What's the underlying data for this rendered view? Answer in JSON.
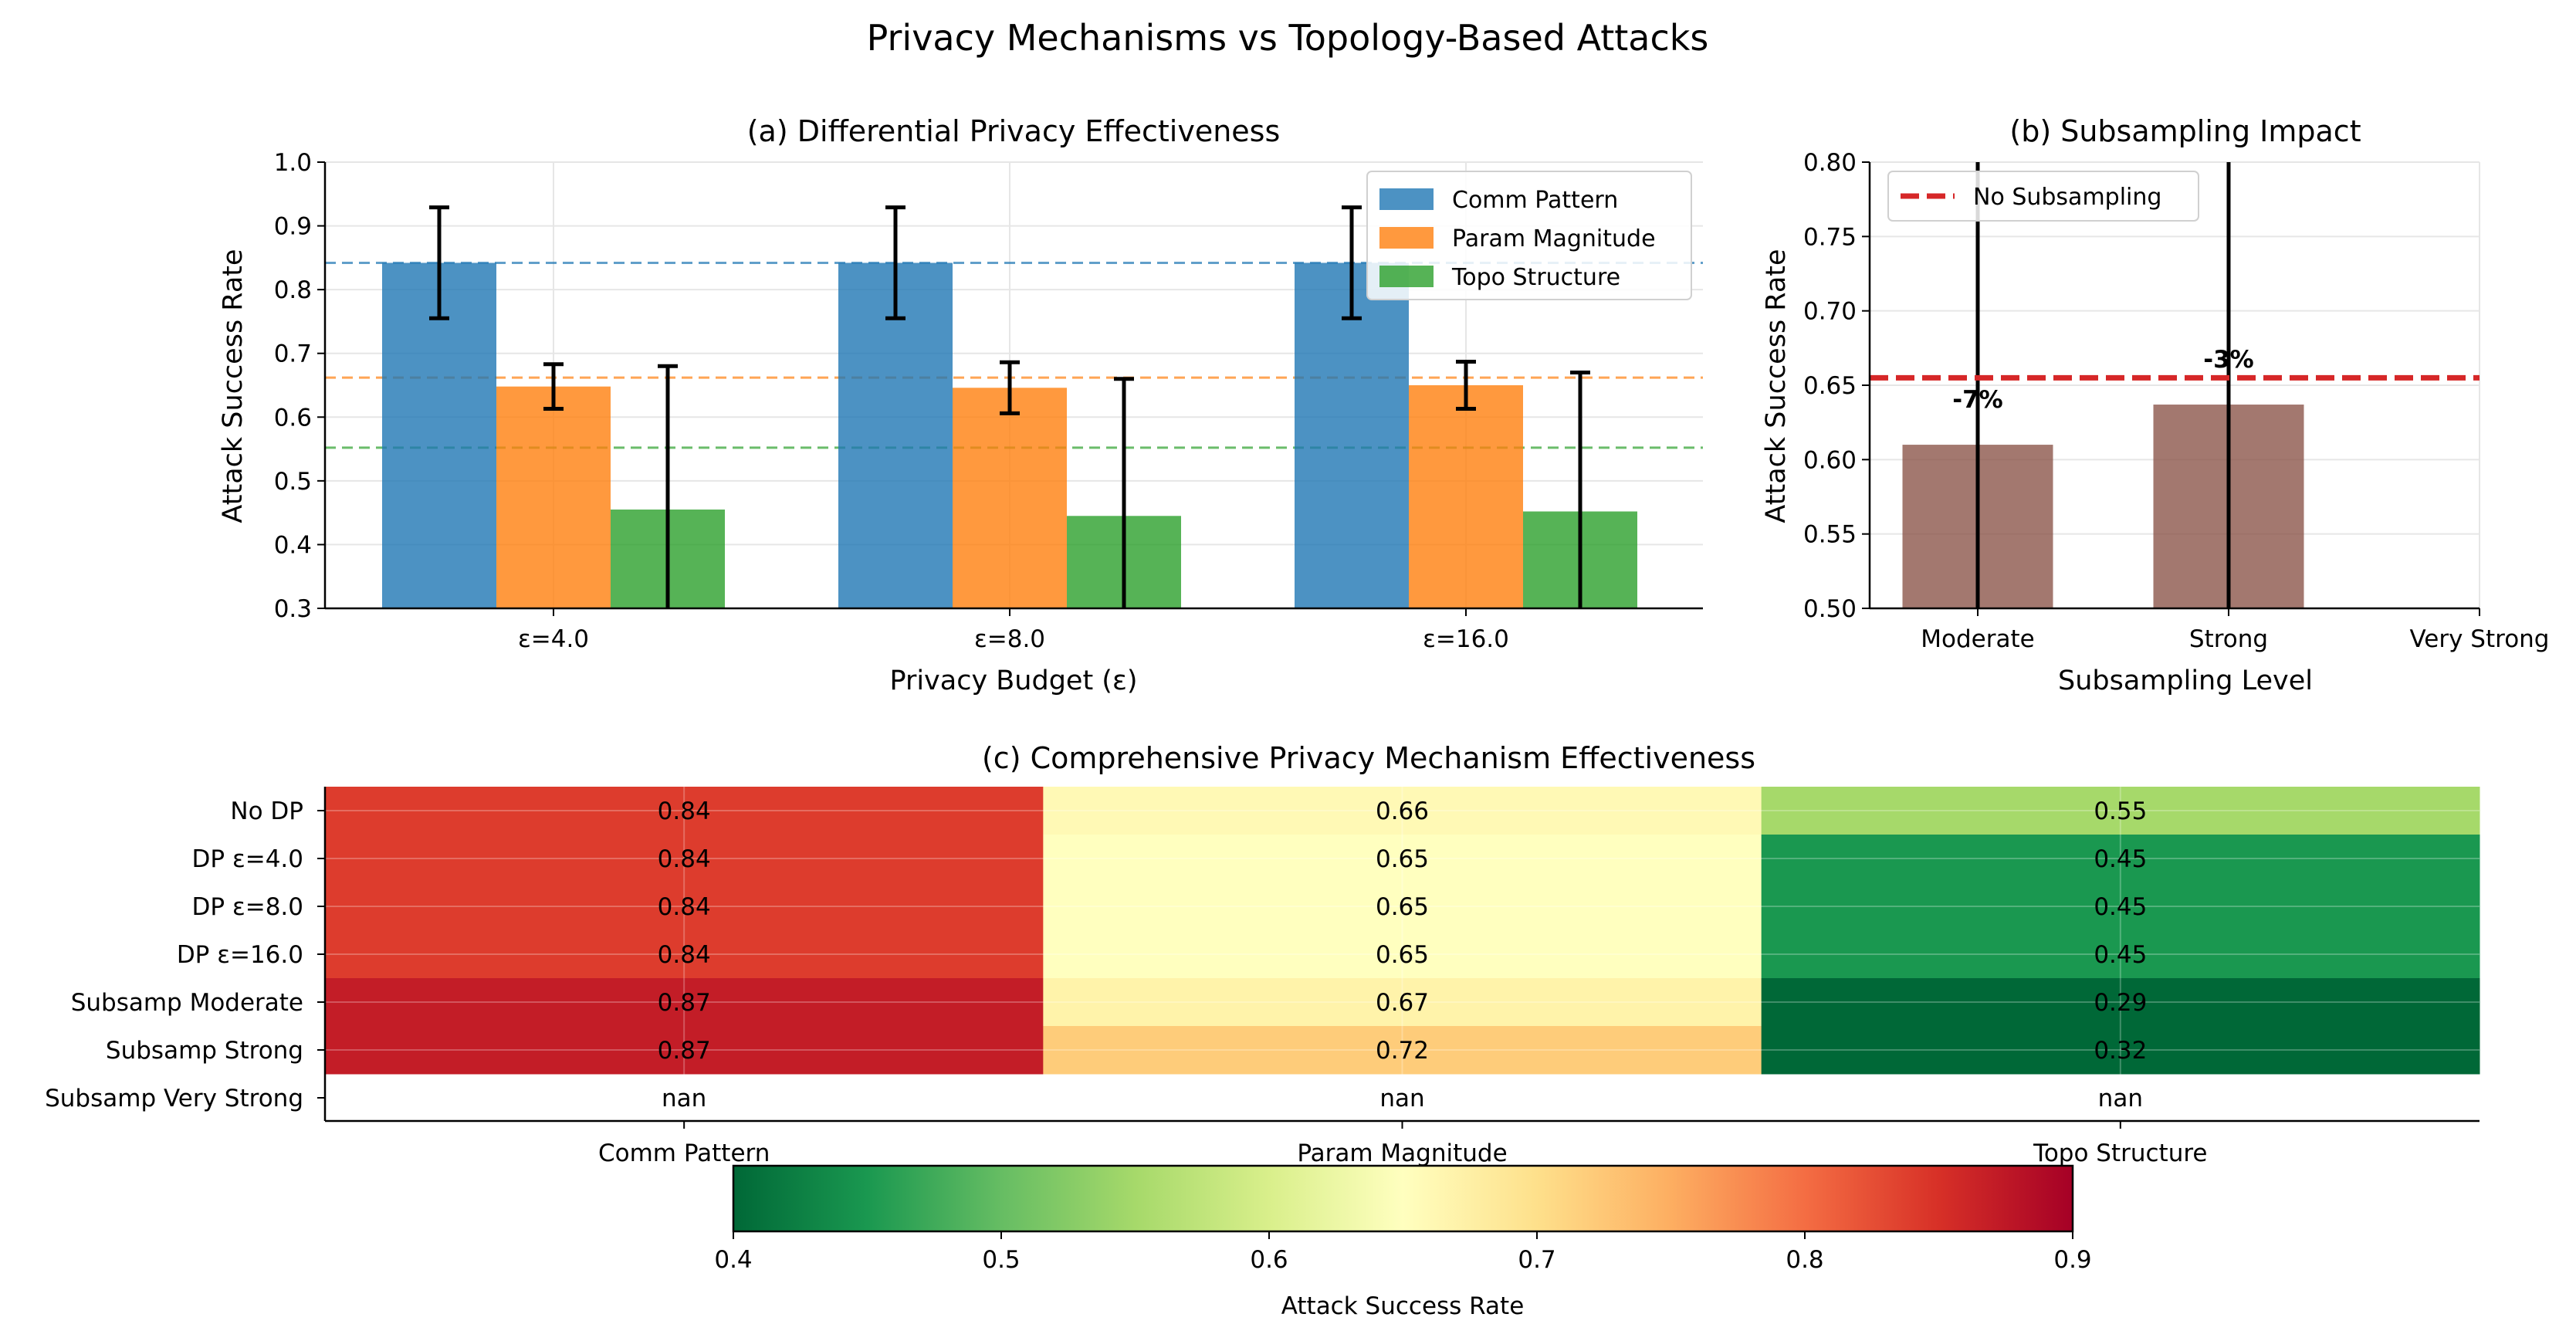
{
  "suptitle": "Privacy Mechanisms vs Topology-Based Attacks",
  "colors": {
    "comm": "#1f77b4",
    "param": "#ff7f0e",
    "topo": "#2ca02c",
    "subsamp_bar": "#8c564b",
    "ref_line": "#d62728",
    "annot": "#006400"
  },
  "chart_data": [
    {
      "type": "bar",
      "title": "(a) Differential Privacy Effectiveness",
      "xlabel": "Privacy Budget (ε)",
      "ylabel": "Attack Success Rate",
      "ylim": [
        0.3,
        1.0
      ],
      "yticks": [
        "0.3",
        "0.4",
        "0.5",
        "0.6",
        "0.7",
        "0.8",
        "0.9",
        "1.0"
      ],
      "categories": [
        "ε=4.0",
        "ε=8.0",
        "ε=16.0"
      ],
      "grid": true,
      "legend_position": "top-right",
      "series": [
        {
          "name": "Comm Pattern",
          "values": [
            0.842,
            0.842,
            0.842
          ],
          "errors": [
            0.087,
            0.087,
            0.087
          ],
          "baseline": 0.842
        },
        {
          "name": "Param Magnitude",
          "values": [
            0.648,
            0.646,
            0.65
          ],
          "errors": [
            0.035,
            0.04,
            0.037
          ],
          "baseline": 0.662
        },
        {
          "name": "Topo Structure",
          "values": [
            0.455,
            0.445,
            0.452
          ],
          "errors": [
            0.225,
            0.215,
            0.218
          ],
          "baseline": 0.552
        }
      ]
    },
    {
      "type": "bar",
      "title": "(b) Subsampling Impact",
      "xlabel": "Subsampling Level",
      "ylabel": "Attack Success Rate",
      "ylim": [
        0.5,
        0.8
      ],
      "yticks": [
        "0.50",
        "0.55",
        "0.60",
        "0.65",
        "0.70",
        "0.75",
        "0.80"
      ],
      "categories": [
        "Moderate",
        "Strong",
        "Very Strong"
      ],
      "values": [
        0.61,
        0.637,
        null
      ],
      "errors": [
        0.25,
        0.25,
        null
      ],
      "annotations": [
        "-7%",
        "-3%",
        null
      ],
      "reference_line": {
        "name": "No Subsampling",
        "value": 0.655
      },
      "grid": true,
      "legend_position": "top-left"
    },
    {
      "type": "heatmap",
      "title": "(c) Comprehensive Privacy Mechanism Effectiveness",
      "rows": [
        "No DP",
        "DP ε=4.0",
        "DP ε=8.0",
        "DP ε=16.0",
        "Subsamp Moderate",
        "Subsamp Strong",
        "Subsamp Very Strong"
      ],
      "columns": [
        "Comm Pattern",
        "Param Magnitude",
        "Topo Structure"
      ],
      "values": [
        [
          0.84,
          0.66,
          0.55
        ],
        [
          0.84,
          0.65,
          0.45
        ],
        [
          0.84,
          0.65,
          0.45
        ],
        [
          0.84,
          0.65,
          0.45
        ],
        [
          0.87,
          0.67,
          0.29
        ],
        [
          0.87,
          0.72,
          0.32
        ],
        [
          null,
          null,
          null
        ]
      ],
      "labels": [
        [
          "0.84",
          "0.66",
          "0.55"
        ],
        [
          "0.84",
          "0.65",
          "0.45"
        ],
        [
          "0.84",
          "0.65",
          "0.45"
        ],
        [
          "0.84",
          "0.65",
          "0.45"
        ],
        [
          "0.87",
          "0.67",
          "0.29"
        ],
        [
          "0.87",
          "0.72",
          "0.32"
        ],
        [
          "nan",
          "nan",
          "nan"
        ]
      ],
      "colormap": "RdYlGn_r",
      "vmin": 0.4,
      "vmax": 0.9,
      "colorbar": {
        "label": "Attack Success Rate",
        "ticks": [
          "0.4",
          "0.5",
          "0.6",
          "0.7",
          "0.8",
          "0.9"
        ]
      }
    }
  ]
}
